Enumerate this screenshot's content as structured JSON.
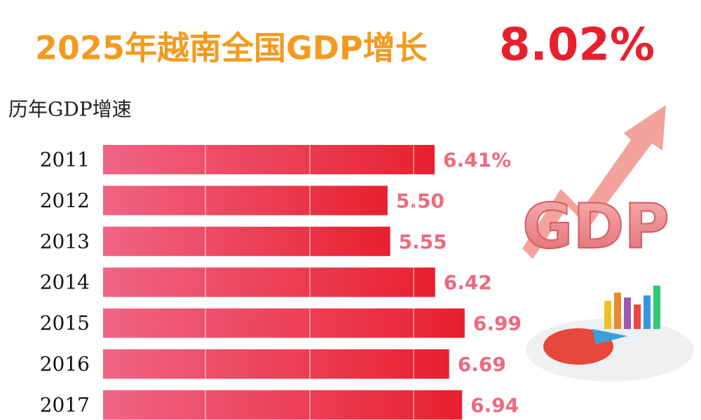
{
  "chart_data": {
    "type": "bar",
    "orientation": "horizontal",
    "title": "2025年越南全国GDP增长",
    "title_highlight": "8.02%",
    "subtitle": "历年GDP增速",
    "categories": [
      "2011",
      "2012",
      "2013",
      "2014",
      "2015",
      "2016",
      "2017"
    ],
    "values": [
      6.41,
      5.5,
      5.55,
      6.42,
      6.99,
      6.69,
      6.94
    ],
    "value_labels": [
      "6.41%",
      "5.50",
      "5.55",
      "6.42",
      "6.99",
      "6.69",
      "6.94"
    ],
    "color": "#e8202e",
    "illustration_text": "GDP"
  }
}
